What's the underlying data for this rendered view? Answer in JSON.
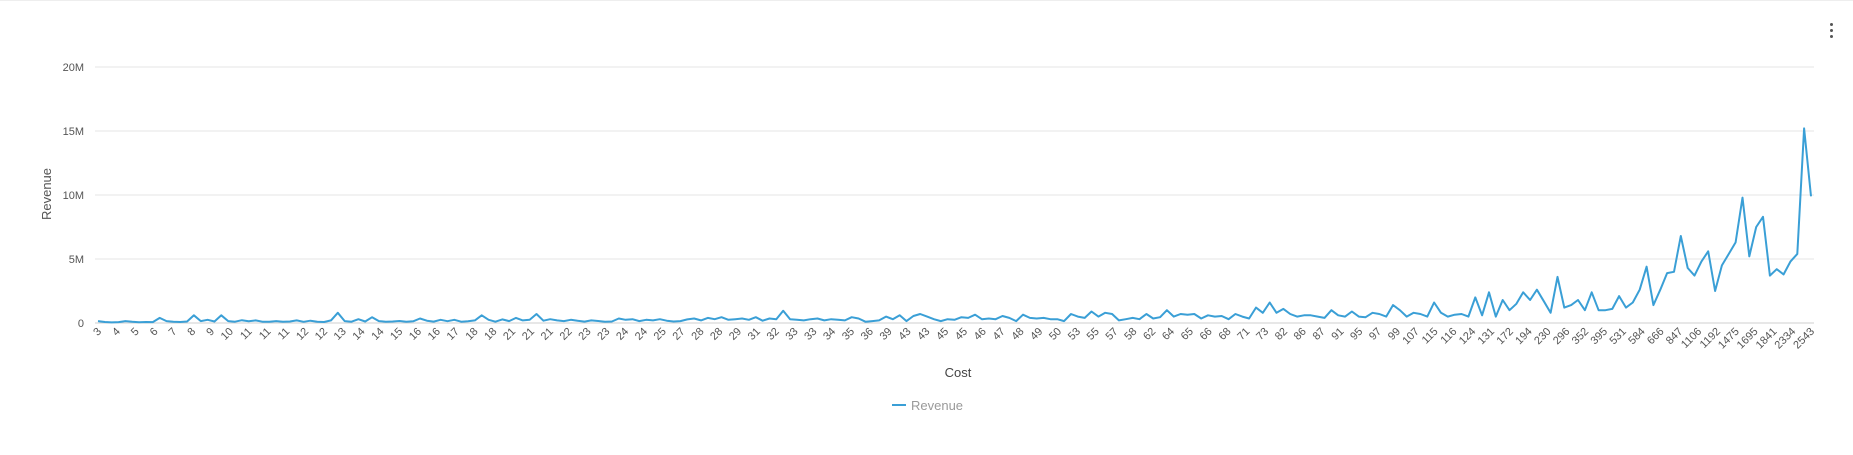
{
  "menu": {
    "icon": "more-vert-icon"
  },
  "chart_data": {
    "type": "line",
    "xlabel": "Cost",
    "ylabel": "Revenue",
    "legend": {
      "position": "bottom-center"
    },
    "grid": true,
    "ylim": [
      0,
      20000000
    ],
    "y_ticks": [
      {
        "value": 0,
        "label": "0"
      },
      {
        "value": 5000000,
        "label": "5M"
      },
      {
        "value": 10000000,
        "label": "10M"
      },
      {
        "value": 15000000,
        "label": "15M"
      },
      {
        "value": 20000000,
        "label": "20M"
      }
    ],
    "x_tick_labels": [
      "3",
      "4",
      "5",
      "6",
      "7",
      "8",
      "9",
      "10",
      "11",
      "11",
      "11",
      "12",
      "12",
      "13",
      "14",
      "14",
      "15",
      "16",
      "16",
      "17",
      "18",
      "18",
      "21",
      "21",
      "21",
      "22",
      "23",
      "23",
      "24",
      "24",
      "25",
      "27",
      "28",
      "28",
      "29",
      "31",
      "32",
      "33",
      "33",
      "34",
      "35",
      "36",
      "39",
      "43",
      "43",
      "45",
      "45",
      "46",
      "47",
      "48",
      "49",
      "50",
      "53",
      "55",
      "57",
      "58",
      "62",
      "64",
      "65",
      "66",
      "68",
      "71",
      "73",
      "82",
      "86",
      "87",
      "91",
      "95",
      "97",
      "99",
      "107",
      "115",
      "116",
      "124",
      "131",
      "172",
      "194",
      "230",
      "296",
      "352",
      "395",
      "531",
      "584",
      "666",
      "847",
      "1106",
      "1192",
      "1475",
      "1695",
      "1841",
      "2334",
      "2543"
    ],
    "series": [
      {
        "name": "Revenue",
        "color": "#3a9fd6",
        "values": [
          150000,
          80000,
          50000,
          70000,
          150000,
          90000,
          60000,
          80000,
          70000,
          400000,
          150000,
          100000,
          80000,
          120000,
          600000,
          150000,
          250000,
          120000,
          600000,
          150000,
          100000,
          220000,
          140000,
          200000,
          100000,
          90000,
          150000,
          100000,
          120000,
          200000,
          90000,
          180000,
          100000,
          80000,
          200000,
          800000,
          150000,
          100000,
          300000,
          120000,
          450000,
          150000,
          100000,
          120000,
          160000,
          100000,
          130000,
          350000,
          180000,
          110000,
          250000,
          140000,
          250000,
          100000,
          130000,
          200000,
          600000,
          250000,
          100000,
          280000,
          150000,
          400000,
          200000,
          250000,
          700000,
          180000,
          300000,
          200000,
          150000,
          250000,
          170000,
          110000,
          200000,
          160000,
          100000,
          120000,
          350000,
          250000,
          300000,
          150000,
          250000,
          200000,
          300000,
          180000,
          120000,
          150000,
          280000,
          350000,
          200000,
          400000,
          300000,
          450000,
          250000,
          300000,
          350000,
          250000,
          450000,
          180000,
          350000,
          300000,
          950000,
          300000,
          250000,
          200000,
          300000,
          350000,
          200000,
          300000,
          250000,
          200000,
          450000,
          350000,
          100000,
          150000,
          200000,
          500000,
          300000,
          600000,
          150000,
          550000,
          700000,
          500000,
          300000,
          150000,
          300000,
          250000,
          450000,
          400000,
          650000,
          300000,
          350000,
          300000,
          550000,
          400000,
          150000,
          650000,
          400000,
          350000,
          400000,
          300000,
          300000,
          150000,
          700000,
          500000,
          400000,
          900000,
          500000,
          800000,
          700000,
          200000,
          300000,
          400000,
          300000,
          700000,
          350000,
          450000,
          1000000,
          500000,
          700000,
          650000,
          700000,
          350000,
          600000,
          500000,
          550000,
          300000,
          700000,
          500000,
          350000,
          1200000,
          800000,
          1600000,
          800000,
          1100000,
          700000,
          500000,
          600000,
          600000,
          500000,
          400000,
          1000000,
          600000,
          500000,
          900000,
          500000,
          450000,
          800000,
          700000,
          500000,
          1400000,
          1000000,
          500000,
          800000,
          700000,
          500000,
          1600000,
          800000,
          500000,
          650000,
          700000,
          500000,
          2000000,
          600000,
          2400000,
          500000,
          1800000,
          1000000,
          1500000,
          2400000,
          1800000,
          2600000,
          1700000,
          800000,
          3600000,
          1200000,
          1400000,
          1800000,
          1000000,
          2400000,
          1000000,
          1000000,
          1100000,
          2100000,
          1200000,
          1600000,
          2600000,
          4400000,
          1400000,
          2600000,
          3900000,
          4000000,
          6800000,
          4300000,
          3700000,
          4800000,
          5600000,
          2500000,
          4500000,
          5400000,
          6300000,
          9800000,
          5200000,
          7500000,
          8300000,
          3700000,
          4200000,
          3800000,
          4800000,
          5400000,
          15200000,
          9900000
        ]
      }
    ]
  }
}
